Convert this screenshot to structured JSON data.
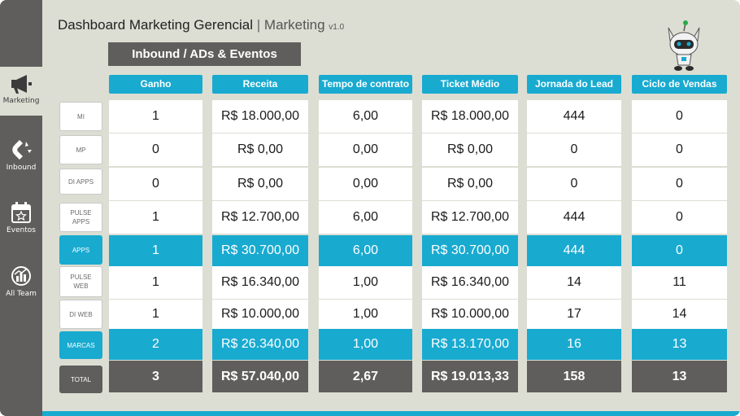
{
  "header": {
    "title": "Dashboard Marketing Gerencial",
    "separator": "|",
    "subtitle": "Marketing",
    "version": "v1.0"
  },
  "section_button": "Inbound / ADs & Eventos",
  "sidebar": {
    "items": [
      {
        "label": "Marketing",
        "icon": "megaphone-icon",
        "active": true
      },
      {
        "label": "Inbound",
        "icon": "magnet-icon",
        "active": false
      },
      {
        "label": "Eventos",
        "icon": "calendar-star-icon",
        "active": false
      },
      {
        "label": "All Team",
        "icon": "team-chart-icon",
        "active": false
      }
    ]
  },
  "colors": {
    "accent": "#19aad0",
    "dark": "#5f5e5c",
    "background": "#dcded3"
  },
  "table": {
    "columns": [
      "Ganho",
      "Receita",
      "Tempo de contrato",
      "Ticket Médio",
      "Jornada do Lead",
      "Ciclo de Vendas"
    ],
    "rows": [
      {
        "label": "MI",
        "style": "normal",
        "values": [
          "1",
          "R$ 18.000,00",
          "6,00",
          "R$ 18.000,00",
          "444",
          "0"
        ]
      },
      {
        "label": "MP",
        "style": "normal",
        "values": [
          "0",
          "R$ 0,00",
          "0,00",
          "R$ 0,00",
          "0",
          "0"
        ]
      },
      {
        "label": "DI APPS",
        "style": "normal",
        "values": [
          "0",
          "R$ 0,00",
          "0,00",
          "R$ 0,00",
          "0",
          "0"
        ]
      },
      {
        "label": "PULSE\nAPPS",
        "style": "normal",
        "values": [
          "1",
          "R$ 12.700,00",
          "6,00",
          "R$ 12.700,00",
          "444",
          "0"
        ]
      },
      {
        "label": "APPS",
        "style": "highlight",
        "values": [
          "1",
          "R$ 30.700,00",
          "6,00",
          "R$ 30.700,00",
          "444",
          "0"
        ]
      },
      {
        "label": "PULSE\nWEB",
        "style": "normal",
        "values": [
          "1",
          "R$ 16.340,00",
          "1,00",
          "R$ 16.340,00",
          "14",
          "11"
        ]
      },
      {
        "label": "DI WEB",
        "style": "normal",
        "values": [
          "1",
          "R$ 10.000,00",
          "1,00",
          "R$ 10.000,00",
          "17",
          "14"
        ]
      },
      {
        "label": "MARCAS",
        "style": "highlight",
        "values": [
          "2",
          "R$ 26.340,00",
          "1,00",
          "R$ 13.170,00",
          "16",
          "13"
        ]
      },
      {
        "label": "TOTAL",
        "style": "total",
        "values": [
          "3",
          "R$ 57.040,00",
          "2,67",
          "R$ 19.013,33",
          "158",
          "13"
        ]
      }
    ]
  }
}
